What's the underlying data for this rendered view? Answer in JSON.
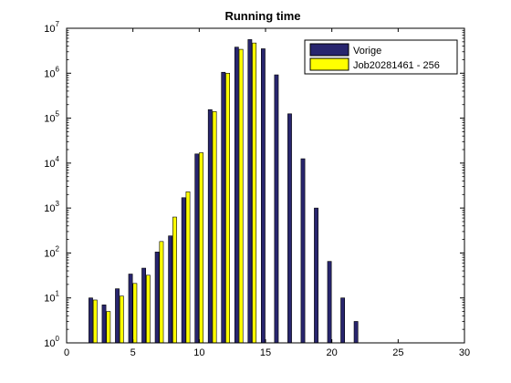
{
  "chart_data": {
    "type": "bar",
    "title": "Running time",
    "xlabel": "",
    "ylabel": "",
    "xlim": [
      0,
      30
    ],
    "ylim": [
      1,
      10000000
    ],
    "yscale": "log",
    "grid": false,
    "legend_position": "top-right",
    "x_ticks": [
      0,
      5,
      10,
      15,
      20,
      25,
      30
    ],
    "y_ticks": [
      {
        "value": 1,
        "base": "10",
        "exp": "0"
      },
      {
        "value": 10,
        "base": "10",
        "exp": "1"
      },
      {
        "value": 100,
        "base": "10",
        "exp": "2"
      },
      {
        "value": 1000,
        "base": "10",
        "exp": "3"
      },
      {
        "value": 10000,
        "base": "10",
        "exp": "4"
      },
      {
        "value": 100000,
        "base": "10",
        "exp": "5"
      },
      {
        "value": 1000000,
        "base": "10",
        "exp": "6"
      },
      {
        "value": 10000000,
        "base": "10",
        "exp": "7"
      }
    ],
    "series": [
      {
        "name": "Vorige",
        "color": "#28256e",
        "x": [
          2,
          3,
          4,
          5,
          6,
          7,
          8,
          9,
          10,
          11,
          12,
          13,
          14,
          15,
          16,
          17,
          18,
          19,
          20,
          21,
          22
        ],
        "values": [
          10,
          7,
          16,
          34,
          46,
          105,
          240,
          1700,
          16000,
          155000,
          1050000,
          3800000,
          5600000,
          3500000,
          920000,
          125000,
          12500,
          1000,
          65,
          10,
          3
        ]
      },
      {
        "name": "Job20281461 - 256",
        "color": "#ffff00",
        "x": [
          2,
          3,
          4,
          5,
          6,
          7,
          8,
          9,
          10,
          11,
          12,
          13,
          14
        ],
        "values": [
          9,
          5,
          11,
          21,
          32,
          180,
          630,
          2300,
          17000,
          140000,
          1000000,
          3400000,
          4700000
        ]
      }
    ]
  }
}
